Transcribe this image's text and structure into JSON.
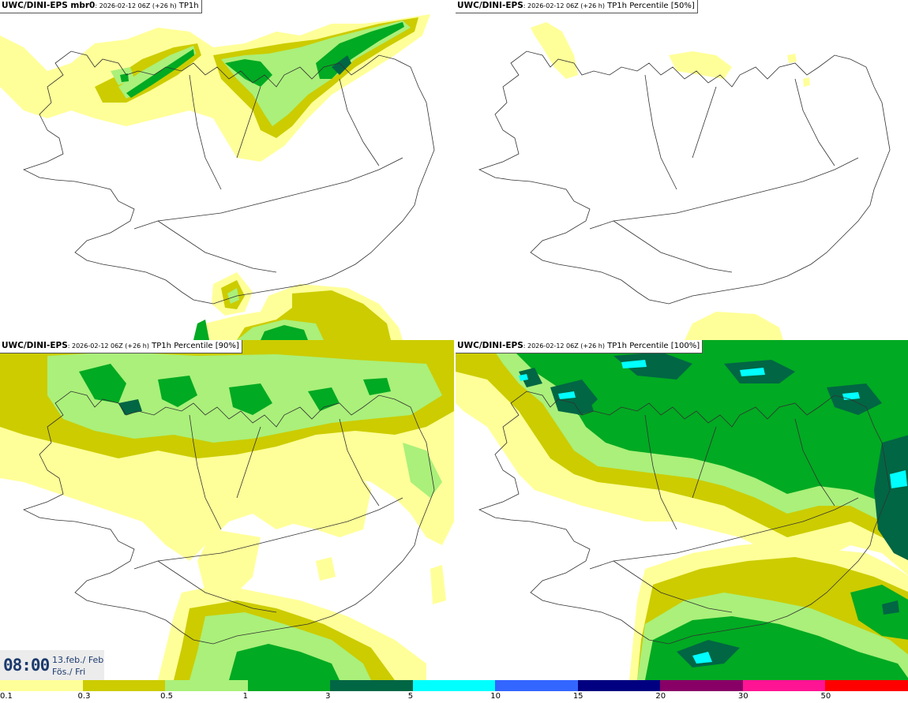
{
  "panels": [
    {
      "id": "mbr0",
      "model": "UWC/DINI-EPS mbr0",
      "run": ": 2026-02-12 06Z (+26 h)",
      "field": "TP1h"
    },
    {
      "id": "p50",
      "model": "UWC/DINI-EPS",
      "run": ": 2026-02-12 06Z (+26 h)",
      "field": "TP1h Percentile [50%]"
    },
    {
      "id": "p90",
      "model": "UWC/DINI-EPS",
      "run": ": 2026-02-12 06Z (+26 h)",
      "field": "TP1h Percentile [90%]"
    },
    {
      "id": "p100",
      "model": "UWC/DINI-EPS",
      "run": ": 2026-02-12 06Z (+26 h)",
      "field": "TP1h Percentile [100%]"
    }
  ],
  "valid_time": {
    "time": "08:00",
    "date_line": "13.feb./ Feb",
    "day_line": "Fös./ Fri"
  },
  "legend": {
    "colors": [
      "#ffff99",
      "#cccc00",
      "#aaf07a",
      "#00aa22",
      "#006644",
      "#00ffff",
      "#3366ff",
      "#000080",
      "#880066",
      "#ff1493",
      "#ff0000"
    ],
    "labels": [
      "0.1",
      "0.3",
      "0.5",
      "1",
      "3",
      "5",
      "10",
      "15",
      "20",
      "30",
      "50"
    ]
  },
  "colors": {
    "y1": "#ffff99",
    "y2": "#cccc00",
    "g1": "#aaf07a",
    "g2": "#00aa22",
    "g3": "#006644",
    "c1": "#00ffff",
    "coast": "#333333"
  }
}
